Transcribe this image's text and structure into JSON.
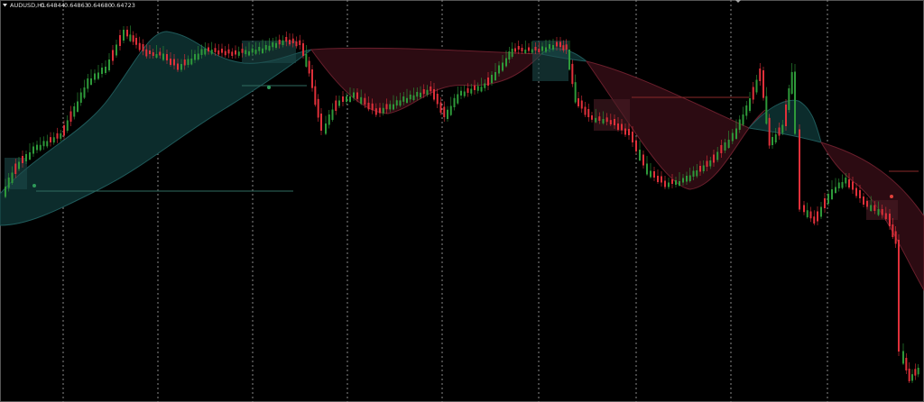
{
  "header": {
    "symbol": "AUDUSD,H1",
    "open": "0.64844",
    "high": "0.64863",
    "low": "0.64680",
    "close": "0.64723"
  }
}
